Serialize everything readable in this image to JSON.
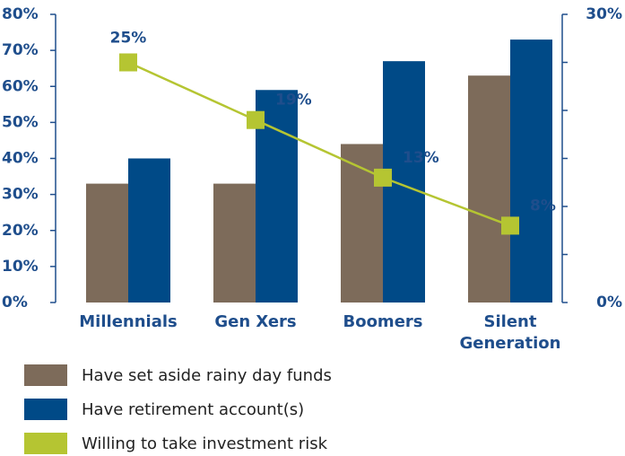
{
  "chart_data": {
    "type": "bar_line",
    "categories": [
      "Millennials",
      "Gen Xers",
      "Boomers",
      "Silent Generation"
    ],
    "series": [
      {
        "name": "Have set aside rainy day funds",
        "color": "#7d6b5a",
        "values": [
          33,
          33,
          44,
          63
        ]
      },
      {
        "name": "Have retirement account(s)",
        "color": "#004a87",
        "values": [
          40,
          59,
          67,
          73
        ]
      },
      {
        "name": "Willing to take investment risk",
        "color": "#b5c532",
        "axis": "y2",
        "kind": "line",
        "values": [
          25,
          19,
          13,
          8
        ],
        "value_labels": [
          "25%",
          "19%",
          "13%",
          "8%"
        ]
      }
    ],
    "ylim": [
      0,
      80
    ],
    "yticks": [
      {
        "value": 0,
        "label": "0%"
      },
      {
        "value": 10,
        "label": "10%"
      },
      {
        "value": 20,
        "label": "20%"
      },
      {
        "value": 30,
        "label": "30%"
      },
      {
        "value": 40,
        "label": "40%"
      },
      {
        "value": 50,
        "label": "50%"
      },
      {
        "value": 60,
        "label": "60%"
      },
      {
        "value": 70,
        "label": "70%"
      },
      {
        "value": 80,
        "label": "80%"
      }
    ],
    "y2lim": [
      0,
      30
    ],
    "y2ticks": [
      {
        "value": 0,
        "label": "0%"
      },
      {
        "value": 30,
        "label": "30%"
      }
    ],
    "y2minor_ticks": [
      5,
      10,
      15,
      20,
      25
    ],
    "legend": "bottom-left"
  }
}
